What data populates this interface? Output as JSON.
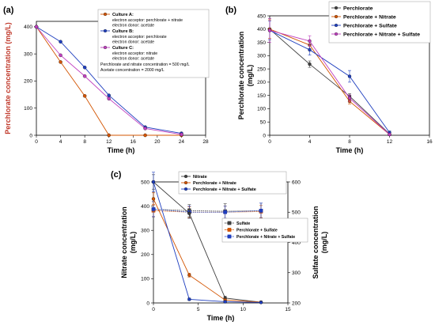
{
  "chart_data": [
    {
      "type": "line",
      "panel_label": "(a)",
      "xlabel": "Time (h)",
      "ylabel": "Perchlorate concentration (mg/L)",
      "xlim": [
        0,
        28
      ],
      "ylim": [
        0,
        420
      ],
      "xticks": [
        0,
        4,
        8,
        12,
        16,
        20,
        24,
        28
      ],
      "yticks": [
        0,
        100,
        200,
        300,
        400
      ],
      "xtick_labels": [
        "0",
        "4",
        "8",
        "12",
        "16",
        "20",
        "24",
        "28"
      ],
      "ytick_labels": [
        "0",
        "100",
        "200",
        "300",
        "400"
      ],
      "series": [
        {
          "name": "Culture A:",
          "details": [
            "electron acceptor: perchlorate + nitrate",
            "electron donor: acetate"
          ],
          "color": "#d35400",
          "marker": "circle",
          "x": [
            0,
            4,
            8,
            12,
            18,
            24
          ],
          "y": [
            400,
            270,
            145,
            0,
            0,
            0
          ]
        },
        {
          "name": "Culture B:",
          "details": [
            "electron acceptor: perchlorate",
            "electron donor: acetate"
          ],
          "color": "#1f3fbf",
          "marker": "circle",
          "x": [
            0,
            4,
            8,
            12,
            18,
            24
          ],
          "y": [
            400,
            345,
            250,
            147,
            30,
            7
          ]
        },
        {
          "name": "Culture C:",
          "details": [
            "electron acceptor: nitrate",
            "electron donor: acetate"
          ],
          "color": "#c040c0",
          "marker": "circle",
          "x": [
            0,
            4,
            8,
            12,
            18,
            24
          ],
          "y": [
            400,
            295,
            218,
            135,
            25,
            3
          ]
        }
      ],
      "legend_notes": [
        "Perchlorate and nitrate concentration = 500 mg/L",
        "Acetate concentration = 2000 mg/L"
      ],
      "legend_position": "top-right",
      "grid": false
    },
    {
      "type": "line",
      "panel_label": "(b)",
      "xlabel": "Time (h)",
      "ylabel": "Perchlorate concentration (mg/L)",
      "xlim": [
        0,
        16
      ],
      "ylim": [
        0,
        450
      ],
      "xticks": [
        0,
        4,
        8,
        12,
        16
      ],
      "yticks": [
        0,
        50,
        100,
        150,
        200,
        250,
        300,
        350,
        400,
        450
      ],
      "xtick_labels": [
        "0",
        "4",
        "8",
        "12",
        "16"
      ],
      "ytick_labels": [
        "0",
        "50",
        "100",
        "150",
        "200",
        "250",
        "300",
        "350",
        "400",
        "450"
      ],
      "series": [
        {
          "name": "Perchlorate",
          "color": "#404040",
          "marker": "circle",
          "x": [
            0,
            4,
            8,
            12
          ],
          "y": [
            400,
            268,
            147,
            5
          ],
          "err": [
            40,
            12,
            10,
            5
          ]
        },
        {
          "name": "Perchlorate + Nitrate",
          "color": "#d35400",
          "marker": "circle",
          "x": [
            0,
            4,
            8,
            12
          ],
          "y": [
            400,
            340,
            128,
            3
          ],
          "err": [
            35,
            15,
            10,
            5
          ]
        },
        {
          "name": "Perchlorate + Sulfate",
          "color": "#1f3fbf",
          "marker": "circle",
          "x": [
            0,
            4,
            8,
            12
          ],
          "y": [
            395,
            322,
            222,
            10
          ],
          "err": [
            35,
            20,
            22,
            6
          ]
        },
        {
          "name": "Perchlorate + Nitrate + Sulfate",
          "color": "#c040c0",
          "marker": "circle",
          "x": [
            0,
            4,
            8,
            12
          ],
          "y": [
            395,
            355,
            140,
            3
          ],
          "err": [
            45,
            20,
            12,
            5
          ]
        }
      ],
      "legend_position": "top-right",
      "grid": false
    },
    {
      "type": "line",
      "panel_label": "(c)",
      "xlabel": "Time (h)",
      "ylabel": "Nitrate concentration (mg/L)",
      "ylabel_right": "Sulfate concentration (mg/L)",
      "xlim": [
        0,
        15
      ],
      "ylim": [
        0,
        500
      ],
      "ylim_right": [
        200,
        600
      ],
      "xticks": [
        0,
        5,
        10,
        15
      ],
      "yticks": [
        0,
        100,
        200,
        300,
        400,
        500
      ],
      "yticks_right": [
        200,
        300,
        400,
        500,
        600
      ],
      "xtick_labels": [
        "0",
        "5",
        "10",
        "15"
      ],
      "ytick_labels": [
        "0",
        "100",
        "200",
        "300",
        "400",
        "500"
      ],
      "ytick_labels_right": [
        "200",
        "300",
        "400",
        "500",
        "600"
      ],
      "series": [
        {
          "name": "Nitrate",
          "axis": "left",
          "color": "#404040",
          "marker": "circle",
          "x": [
            0,
            4,
            8,
            12
          ],
          "y": [
            500,
            370,
            20,
            3
          ],
          "err": [
            30,
            20,
            8,
            3
          ]
        },
        {
          "name": "Perchlorate + Nitrate",
          "axis": "left",
          "color": "#d35400",
          "marker": "circle",
          "x": [
            0,
            4,
            8,
            12
          ],
          "y": [
            430,
            115,
            12,
            3
          ],
          "err": [
            25,
            8,
            5,
            3
          ]
        },
        {
          "name": "Perchlorate + Nitrate + Sulfate",
          "axis": "left",
          "color": "#1f3fbf",
          "marker": "circle",
          "x": [
            0,
            4,
            8,
            12
          ],
          "y": [
            500,
            15,
            5,
            2
          ],
          "err": [
            40,
            5,
            3,
            2
          ]
        }
      ],
      "series_right": [
        {
          "name": "Sulfate",
          "axis": "right",
          "color": "#404040",
          "marker": "square",
          "x": [
            0,
            4,
            8,
            12
          ],
          "y": [
            510,
            505,
            503,
            505
          ],
          "err": [
            25,
            20,
            25,
            25
          ]
        },
        {
          "name": "Perchlorate + Sulfate",
          "axis": "right",
          "color": "#d35400",
          "marker": "square",
          "x": [
            0,
            4,
            8,
            12
          ],
          "y": [
            505,
            500,
            500,
            502
          ],
          "err": [
            20,
            18,
            20,
            20
          ]
        },
        {
          "name": "Perchlorate + Nitrate + Sulfate",
          "axis": "right",
          "color": "#1f3fbf",
          "marker": "square",
          "x": [
            0,
            4,
            8,
            12
          ],
          "y": [
            510,
            500,
            500,
            505
          ],
          "err": [
            25,
            20,
            20,
            25
          ]
        }
      ],
      "legend_position": "top-right",
      "grid": false
    }
  ]
}
